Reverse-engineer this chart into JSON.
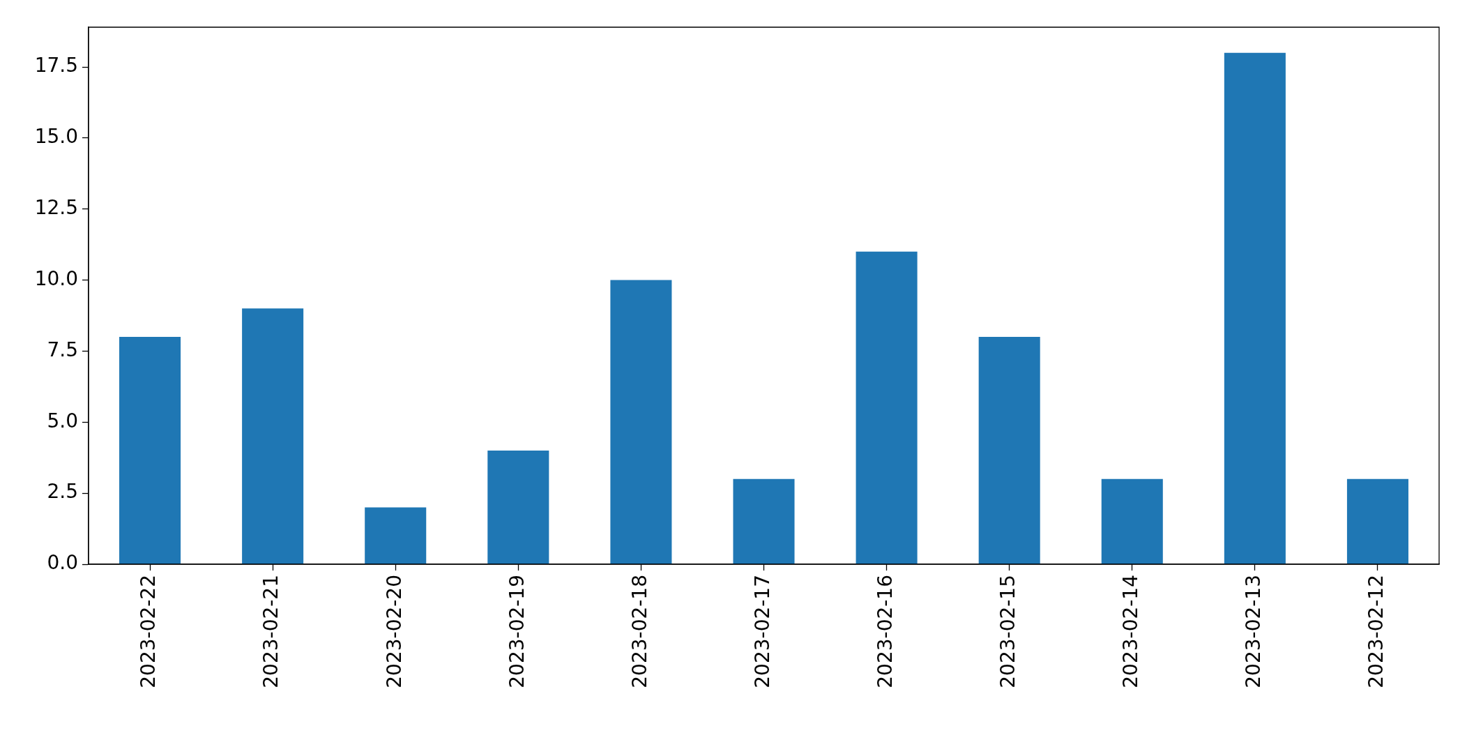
{
  "chart_data": {
    "type": "bar",
    "categories": [
      "2023-02-22",
      "2023-02-21",
      "2023-02-20",
      "2023-02-19",
      "2023-02-18",
      "2023-02-17",
      "2023-02-16",
      "2023-02-15",
      "2023-02-14",
      "2023-02-13",
      "2023-02-12"
    ],
    "values": [
      8,
      9,
      2,
      4,
      10,
      3,
      11,
      8,
      3,
      18,
      3
    ],
    "color": "#1f77b4",
    "ylim": [
      0,
      18.9
    ],
    "yticks": [
      {
        "value": 0,
        "label": "0.0"
      },
      2.5,
      {
        "value": 5,
        "label": "5.0"
      },
      7.5,
      {
        "value": 10,
        "label": "10.0"
      },
      12.5,
      {
        "value": 15,
        "label": "15.0"
      },
      17.5
    ]
  }
}
